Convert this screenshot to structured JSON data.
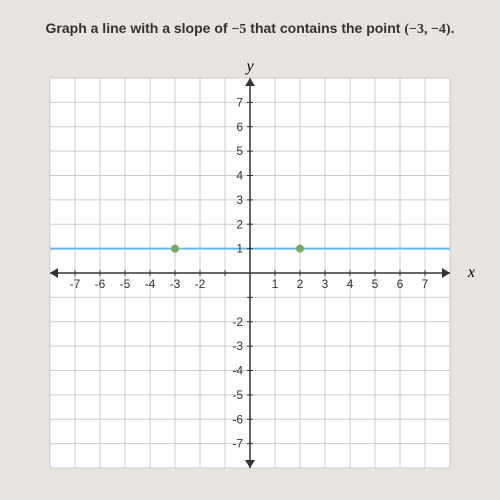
{
  "prompt": {
    "text_before": "Graph a line with a slope of ",
    "slope": "−5",
    "text_middle": " that contains the point ",
    "point": "(−3, −4)",
    "text_after": "."
  },
  "chart": {
    "type": "scatter",
    "xlim": [
      -8,
      8
    ],
    "ylim": [
      -8,
      8
    ],
    "xtick_step": 1,
    "ytick_step": 1,
    "x_label": "x",
    "y_label": "y",
    "x_tick_labels": [
      -7,
      -6,
      -5,
      -4,
      -3,
      -2,
      1,
      2,
      3,
      4,
      5,
      6,
      7
    ],
    "y_tick_labels_pos": [
      1,
      2,
      3,
      4,
      5,
      6,
      7
    ],
    "y_tick_labels_neg": [
      -2,
      -3,
      -4,
      -5,
      -6,
      -7
    ],
    "grid_color": "#cccccc",
    "axis_color": "#333333",
    "background_color": "#ffffff",
    "line": {
      "y_value": 1,
      "color": "#6bb8e8",
      "width": 2
    },
    "points": [
      {
        "x": -3,
        "y": 1
      },
      {
        "x": 2,
        "y": 1
      }
    ],
    "point_color": "#7aa85c",
    "point_radius": 4,
    "label_fontsize": 12,
    "axis_label_fontsize": 16
  }
}
